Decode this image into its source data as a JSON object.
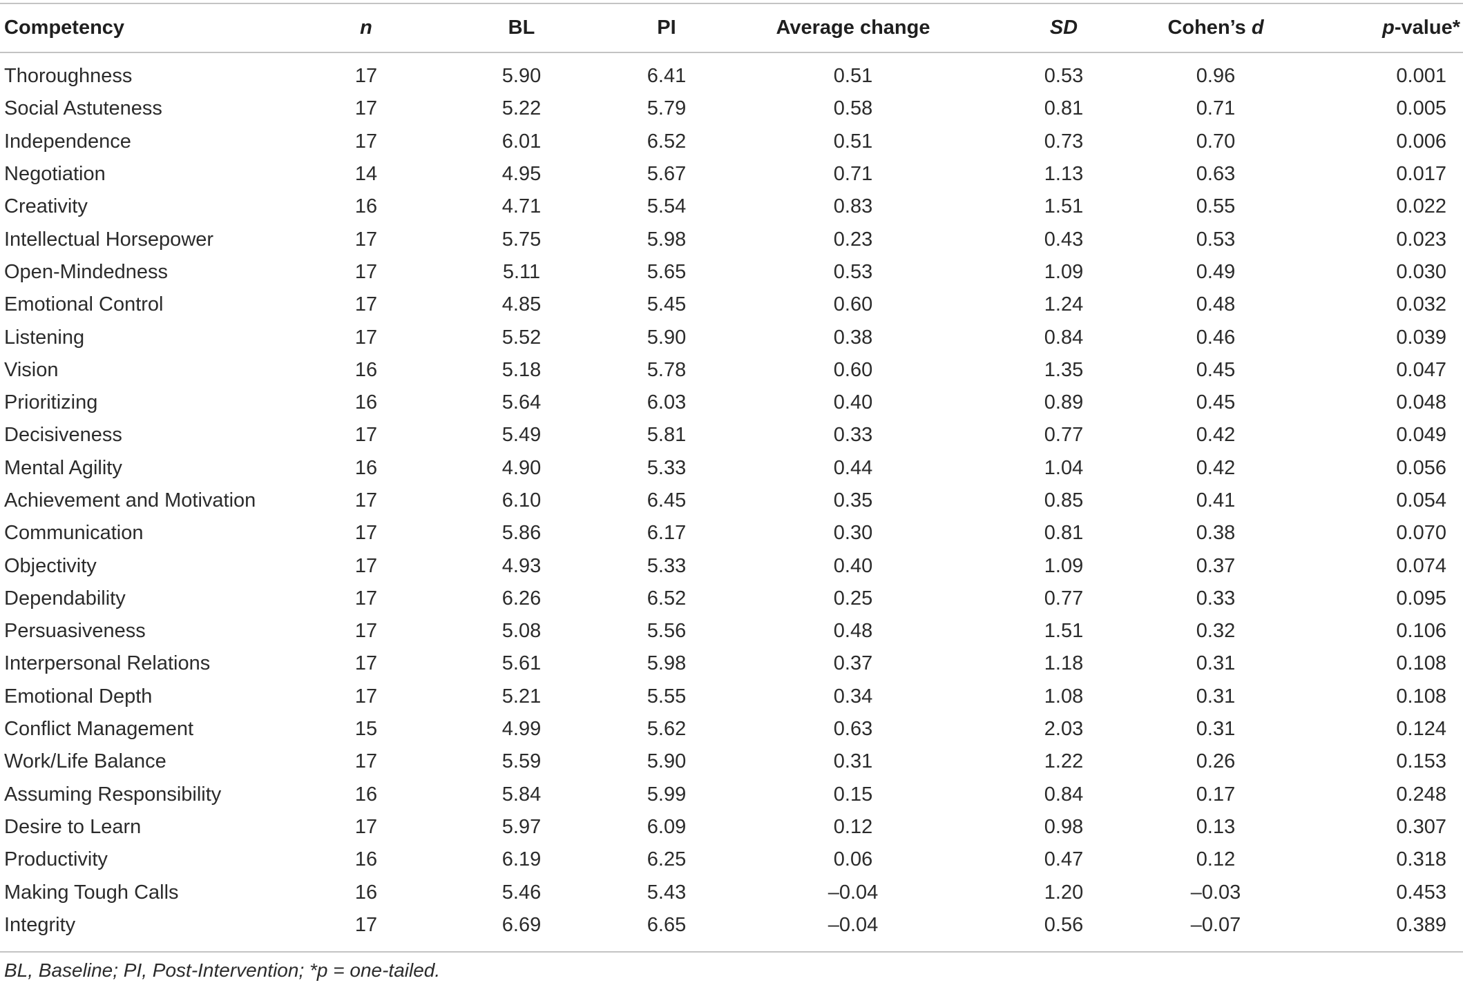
{
  "table": {
    "headers": {
      "competency": "Competency",
      "n": "n",
      "bl": "BL",
      "pi": "PI",
      "average_change": "Average change",
      "sd": "SD",
      "cohens_d_prefix": "Cohen’s ",
      "cohens_d_var": "d",
      "p_value_var": "p",
      "p_value_suffix": "-value*"
    },
    "rows": [
      {
        "competency": "Thoroughness",
        "n": "17",
        "bl": "5.90",
        "pi": "6.41",
        "avg": "0.51",
        "sd": "0.53",
        "d": "0.96",
        "p": "0.001"
      },
      {
        "competency": "Social Astuteness",
        "n": "17",
        "bl": "5.22",
        "pi": "5.79",
        "avg": "0.58",
        "sd": "0.81",
        "d": "0.71",
        "p": "0.005"
      },
      {
        "competency": "Independence",
        "n": "17",
        "bl": "6.01",
        "pi": "6.52",
        "avg": "0.51",
        "sd": "0.73",
        "d": "0.70",
        "p": "0.006"
      },
      {
        "competency": "Negotiation",
        "n": "14",
        "bl": "4.95",
        "pi": "5.67",
        "avg": "0.71",
        "sd": "1.13",
        "d": "0.63",
        "p": "0.017"
      },
      {
        "competency": "Creativity",
        "n": "16",
        "bl": "4.71",
        "pi": "5.54",
        "avg": "0.83",
        "sd": "1.51",
        "d": "0.55",
        "p": "0.022"
      },
      {
        "competency": "Intellectual Horsepower",
        "n": "17",
        "bl": "5.75",
        "pi": "5.98",
        "avg": "0.23",
        "sd": "0.43",
        "d": "0.53",
        "p": "0.023"
      },
      {
        "competency": "Open-Mindedness",
        "n": "17",
        "bl": "5.11",
        "pi": "5.65",
        "avg": "0.53",
        "sd": "1.09",
        "d": "0.49",
        "p": "0.030"
      },
      {
        "competency": "Emotional Control",
        "n": "17",
        "bl": "4.85",
        "pi": "5.45",
        "avg": "0.60",
        "sd": "1.24",
        "d": "0.48",
        "p": "0.032"
      },
      {
        "competency": "Listening",
        "n": "17",
        "bl": "5.52",
        "pi": "5.90",
        "avg": "0.38",
        "sd": "0.84",
        "d": "0.46",
        "p": "0.039"
      },
      {
        "competency": "Vision",
        "n": "16",
        "bl": "5.18",
        "pi": "5.78",
        "avg": "0.60",
        "sd": "1.35",
        "d": "0.45",
        "p": "0.047"
      },
      {
        "competency": "Prioritizing",
        "n": "16",
        "bl": "5.64",
        "pi": "6.03",
        "avg": "0.40",
        "sd": "0.89",
        "d": "0.45",
        "p": "0.048"
      },
      {
        "competency": "Decisiveness",
        "n": "17",
        "bl": "5.49",
        "pi": "5.81",
        "avg": "0.33",
        "sd": "0.77",
        "d": "0.42",
        "p": "0.049"
      },
      {
        "competency": "Mental Agility",
        "n": "16",
        "bl": "4.90",
        "pi": "5.33",
        "avg": "0.44",
        "sd": "1.04",
        "d": "0.42",
        "p": "0.056"
      },
      {
        "competency": "Achievement and Motivation",
        "n": "17",
        "bl": "6.10",
        "pi": "6.45",
        "avg": "0.35",
        "sd": "0.85",
        "d": "0.41",
        "p": "0.054"
      },
      {
        "competency": "Communication",
        "n": "17",
        "bl": "5.86",
        "pi": "6.17",
        "avg": "0.30",
        "sd": "0.81",
        "d": "0.38",
        "p": "0.070"
      },
      {
        "competency": "Objectivity",
        "n": "17",
        "bl": "4.93",
        "pi": "5.33",
        "avg": "0.40",
        "sd": "1.09",
        "d": "0.37",
        "p": "0.074"
      },
      {
        "competency": "Dependability",
        "n": "17",
        "bl": "6.26",
        "pi": "6.52",
        "avg": "0.25",
        "sd": "0.77",
        "d": "0.33",
        "p": "0.095"
      },
      {
        "competency": "Persuasiveness",
        "n": "17",
        "bl": "5.08",
        "pi": "5.56",
        "avg": "0.48",
        "sd": "1.51",
        "d": "0.32",
        "p": "0.106"
      },
      {
        "competency": "Interpersonal Relations",
        "n": "17",
        "bl": "5.61",
        "pi": "5.98",
        "avg": "0.37",
        "sd": "1.18",
        "d": "0.31",
        "p": "0.108"
      },
      {
        "competency": "Emotional Depth",
        "n": "17",
        "bl": "5.21",
        "pi": "5.55",
        "avg": "0.34",
        "sd": "1.08",
        "d": "0.31",
        "p": "0.108"
      },
      {
        "competency": "Conflict Management",
        "n": "15",
        "bl": "4.99",
        "pi": "5.62",
        "avg": "0.63",
        "sd": "2.03",
        "d": "0.31",
        "p": "0.124"
      },
      {
        "competency": "Work/Life Balance",
        "n": "17",
        "bl": "5.59",
        "pi": "5.90",
        "avg": "0.31",
        "sd": "1.22",
        "d": "0.26",
        "p": "0.153"
      },
      {
        "competency": "Assuming Responsibility",
        "n": "16",
        "bl": "5.84",
        "pi": "5.99",
        "avg": "0.15",
        "sd": "0.84",
        "d": "0.17",
        "p": "0.248"
      },
      {
        "competency": "Desire to Learn",
        "n": "17",
        "bl": "5.97",
        "pi": "6.09",
        "avg": "0.12",
        "sd": "0.98",
        "d": "0.13",
        "p": "0.307"
      },
      {
        "competency": "Productivity",
        "n": "16",
        "bl": "6.19",
        "pi": "6.25",
        "avg": "0.06",
        "sd": "0.47",
        "d": "0.12",
        "p": "0.318"
      },
      {
        "competency": "Making Tough Calls",
        "n": "16",
        "bl": "5.46",
        "pi": "5.43",
        "avg": "–0.04",
        "sd": "1.20",
        "d": "–0.03",
        "p": "0.453"
      },
      {
        "competency": "Integrity",
        "n": "17",
        "bl": "6.69",
        "pi": "6.65",
        "avg": "–0.04",
        "sd": "0.56",
        "d": "–0.07",
        "p": "0.389"
      }
    ],
    "footnote": "BL, Baseline; PI, Post-Intervention; *p = one-tailed."
  }
}
